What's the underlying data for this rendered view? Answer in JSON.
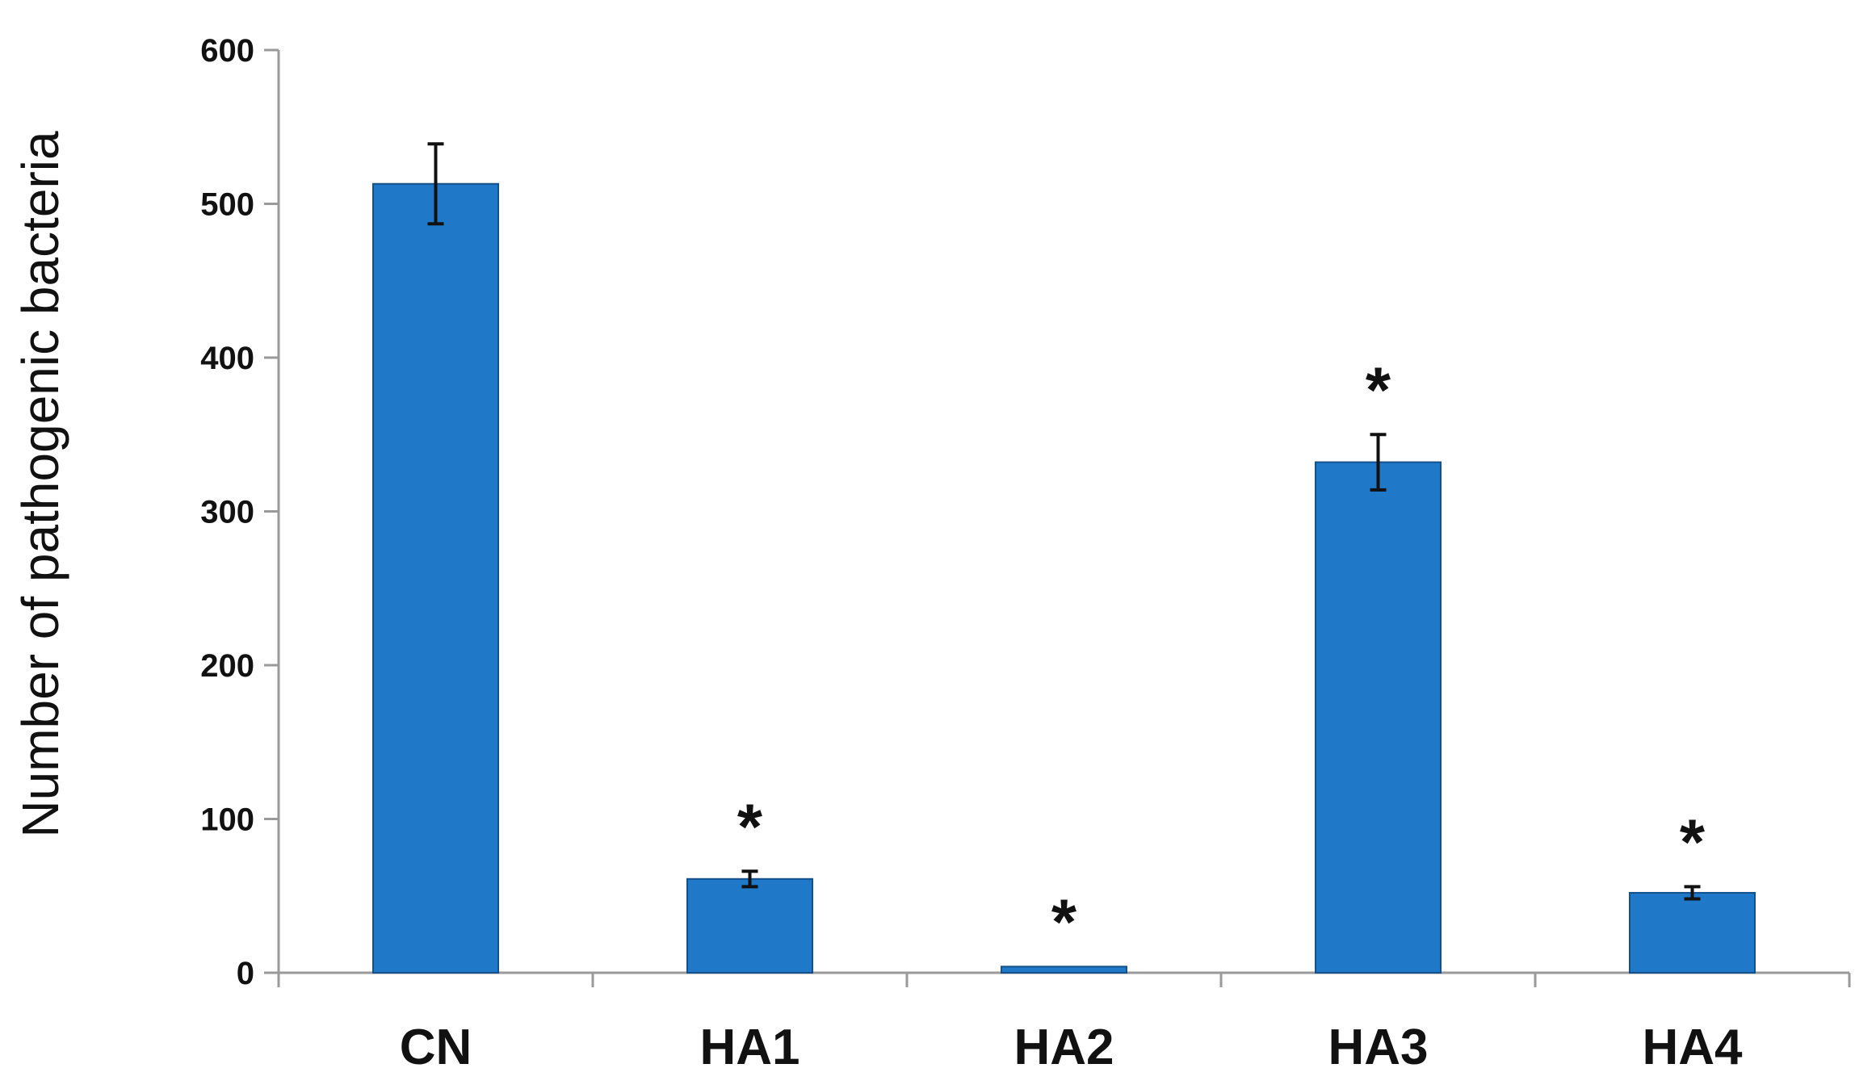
{
  "chart_data": {
    "type": "bar",
    "title": "",
    "xlabel": "",
    "ylabel": "Number of pathogenic bacteria",
    "categories": [
      "CN",
      "HA1",
      "HA2",
      "HA3",
      "HA4"
    ],
    "values": [
      513,
      61,
      4,
      332,
      52
    ],
    "error": [
      26,
      5,
      0,
      18,
      4
    ],
    "significance": [
      "",
      "*",
      "*",
      "*",
      "*"
    ],
    "ylim": [
      0,
      600
    ],
    "yticks": [
      0,
      100,
      200,
      300,
      400,
      500,
      600
    ],
    "ytick_labels": [
      "0",
      "100",
      "200",
      "300",
      "400",
      "500",
      "600"
    ],
    "grid": false,
    "legend": "none",
    "colors": {
      "bar": "#1f78c8",
      "bar_stroke": "#14508a",
      "axis": "#9a9a9a",
      "error_bar": "#111111",
      "text": "#111111"
    }
  }
}
